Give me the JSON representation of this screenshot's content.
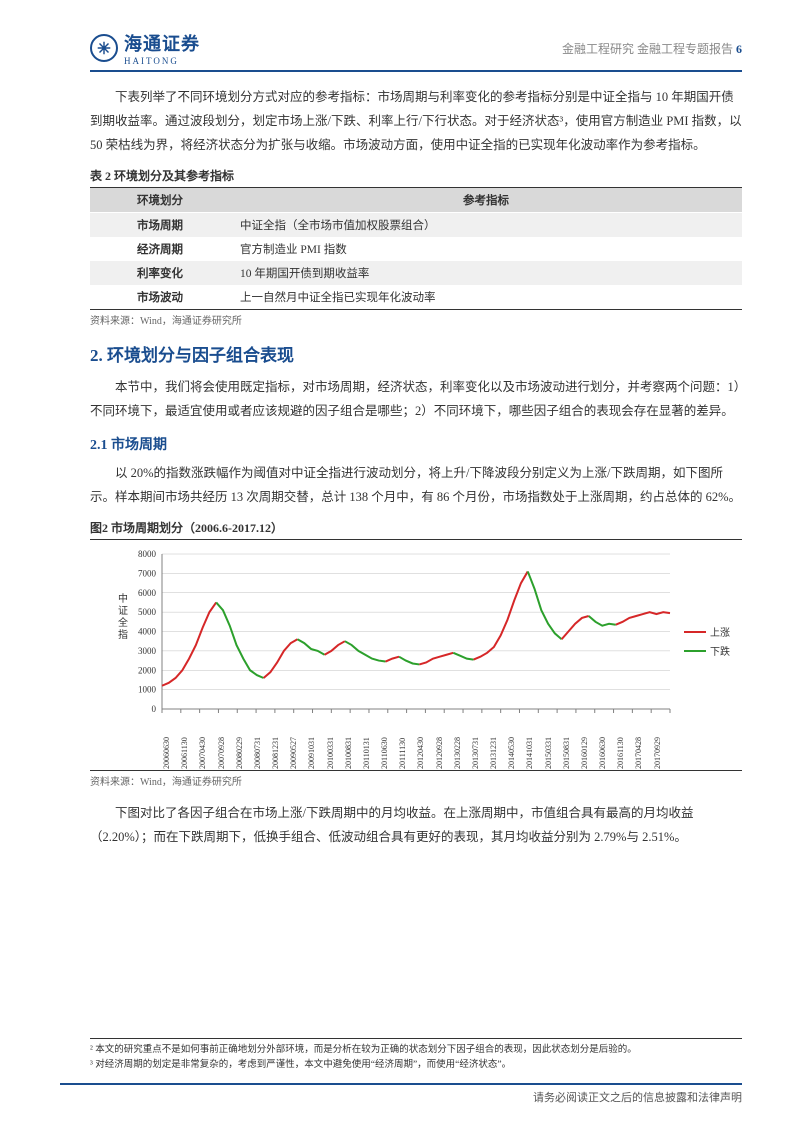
{
  "header": {
    "brand_cn": "海通证券",
    "brand_en": "HAITONG",
    "right_text": "金融工程研究 金融工程专题报告",
    "page_number": "6"
  },
  "para1": "下表列举了不同环境划分方式对应的参考指标：市场周期与利率变化的参考指标分别是中证全指与 10 年期国开债到期收益率。通过波段划分，划定市场上涨/下跌、利率上行/下行状态。对于经济状态³，使用官方制造业 PMI 指数，以 50 荣枯线为界，将经济状态分为扩张与收缩。市场波动方面，使用中证全指的已实现年化波动率作为参考指标。",
  "table2": {
    "title": "表 2 环境划分及其参考指标",
    "columns": [
      "环境划分",
      "参考指标"
    ],
    "rows": [
      [
        "市场周期",
        "中证全指（全市场市值加权股票组合）"
      ],
      [
        "经济周期",
        "官方制造业 PMI 指数"
      ],
      [
        "利率变化",
        "10 年期国开债到期收益率"
      ],
      [
        "市场波动",
        "上一自然月中证全指已实现年化波动率"
      ]
    ],
    "source": "资料来源：Wind，海通证券研究所"
  },
  "section2": {
    "num": "2.",
    "title": "环境划分与因子组合表现",
    "intro": "本节中，我们将会使用既定指标，对市场周期，经济状态，利率变化以及市场波动进行划分，并考察两个问题：1）不同环境下，最适宜使用或者应该规避的因子组合是哪些；2）不同环境下，哪些因子组合的表现会存在显著的差异。"
  },
  "section21": {
    "title": "2.1 市场周期",
    "intro": "以 20%的指数涨跌幅作为阈值对中证全指进行波动划分，将上升/下降波段分别定义为上涨/下跌周期，如下图所示。样本期间市场共经历 13 次周期交替，总计 138 个月中，有 86 个月份，市场指数处于上涨周期，约占总体的 62%。"
  },
  "chart": {
    "title": "图2  市场周期划分（2006.6-2017.12）",
    "y_axis_title": "中证全指",
    "ylim": [
      0,
      8000
    ],
    "yticks": [
      0,
      1000,
      2000,
      3000,
      4000,
      5000,
      6000,
      7000,
      8000
    ],
    "x_labels": [
      "20060630",
      "20061130",
      "20070430",
      "20070928",
      "20080229",
      "20080731",
      "20081231",
      "20090527",
      "20091031",
      "20100331",
      "20100831",
      "20110131",
      "20110630",
      "20111130",
      "20120430",
      "20120928",
      "20130228",
      "20130731",
      "20131231",
      "20140530",
      "20141031",
      "20150331",
      "20150831",
      "20160129",
      "20160630",
      "20161130",
      "20170428",
      "20170929"
    ],
    "legend": [
      {
        "label": "上涨",
        "color": "#d62728"
      },
      {
        "label": "下跌",
        "color": "#2ca02c"
      }
    ],
    "line_width": 2,
    "grid_color": "#c0c0c0",
    "axis_color": "#808080",
    "background": "#ffffff",
    "series": [
      {
        "color": "#d62728",
        "vals": [
          1200,
          1350,
          1600,
          2000,
          2600,
          3300,
          4200,
          5000,
          5500
        ]
      },
      {
        "color": "#2ca02c",
        "vals": [
          5500,
          5100,
          4300,
          3300,
          2600,
          2000,
          1750,
          1600
        ]
      },
      {
        "color": "#d62728",
        "vals": [
          1600,
          1900,
          2400,
          3000,
          3400,
          3600
        ]
      },
      {
        "color": "#2ca02c",
        "vals": [
          3600,
          3400,
          3100,
          3000,
          2800
        ]
      },
      {
        "color": "#d62728",
        "vals": [
          2800,
          3000,
          3300,
          3500
        ]
      },
      {
        "color": "#2ca02c",
        "vals": [
          3500,
          3300,
          3000,
          2800,
          2600,
          2500,
          2450
        ]
      },
      {
        "color": "#d62728",
        "vals": [
          2450,
          2600,
          2700
        ]
      },
      {
        "color": "#2ca02c",
        "vals": [
          2700,
          2500,
          2350,
          2300
        ]
      },
      {
        "color": "#d62728",
        "vals": [
          2300,
          2400,
          2600,
          2700,
          2800,
          2900
        ]
      },
      {
        "color": "#2ca02c",
        "vals": [
          2900,
          2750,
          2600,
          2550
        ]
      },
      {
        "color": "#d62728",
        "vals": [
          2550,
          2700,
          2900,
          3200,
          3800,
          4600,
          5600,
          6500,
          7100
        ]
      },
      {
        "color": "#2ca02c",
        "vals": [
          7100,
          6200,
          5100,
          4400,
          3900,
          3600
        ]
      },
      {
        "color": "#d62728",
        "vals": [
          3600,
          4000,
          4400,
          4700,
          4800
        ]
      },
      {
        "color": "#2ca02c",
        "vals": [
          4800,
          4500,
          4300,
          4400,
          4350
        ]
      },
      {
        "color": "#d62728",
        "vals": [
          4350,
          4500,
          4700,
          4800,
          4900,
          5000,
          4900,
          5000,
          4950
        ]
      }
    ],
    "source": "资料来源：Wind，海通证券研究所"
  },
  "para_after_chart": "下图对比了各因子组合在市场上涨/下跌周期中的月均收益。在上涨周期中，市值组合具有最高的月均收益（2.20%）；而在下跌周期下，低换手组合、低波动组合具有更好的表现，其月均收益分别为 2.79%与 2.51%。",
  "footnotes": {
    "fn2": "² 本文的研究重点不是如何事前正确地划分外部环境，而是分析在较为正确的状态划分下因子组合的表现，因此状态划分是后验的。",
    "fn3": "³ 对经济周期的划定是非常复杂的，考虑到严谨性，本文中避免使用“经济周期”，而使用“经济状态”。"
  },
  "footer": "请务必阅读正文之后的信息披露和法律声明"
}
